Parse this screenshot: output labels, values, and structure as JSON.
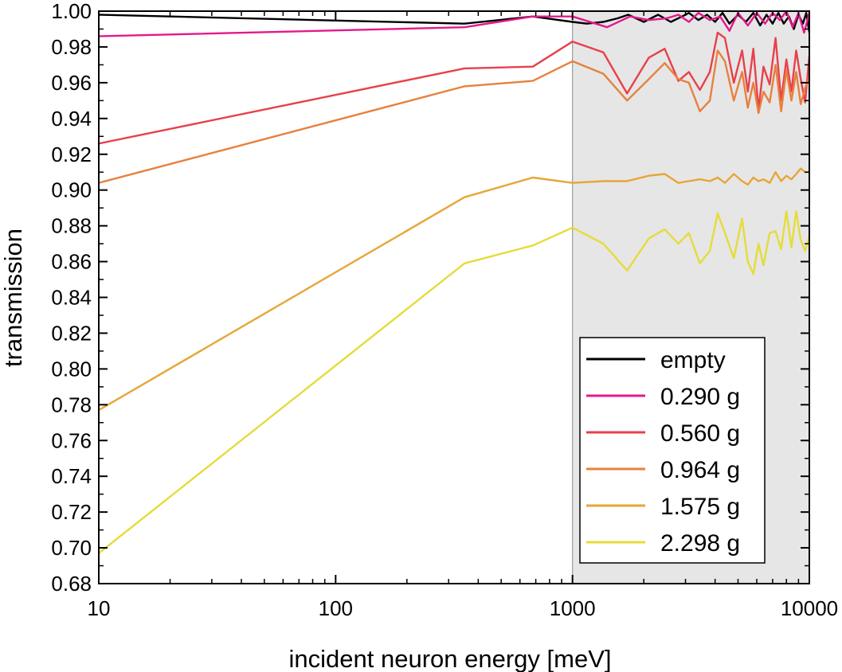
{
  "chart_data": {
    "type": "line",
    "xlabel": "incident neuron energy [meV]",
    "ylabel": "transmission",
    "xscale": "log",
    "xlim": [
      10,
      10000
    ],
    "ylim": [
      0.68,
      1.0
    ],
    "x_ticks": [
      10,
      100,
      1000,
      10000
    ],
    "x_tick_labels": [
      "10",
      "100",
      "1000",
      "10000"
    ],
    "y_ticks": [
      0.68,
      0.7,
      0.72,
      0.74,
      0.76,
      0.78,
      0.8,
      0.82,
      0.84,
      0.86,
      0.88,
      0.9,
      0.92,
      0.94,
      0.96,
      0.98,
      1.0
    ],
    "y_tick_labels": [
      "0.68",
      "0.70",
      "0.72",
      "0.74",
      "0.76",
      "0.78",
      "0.80",
      "0.82",
      "0.84",
      "0.86",
      "0.88",
      "0.90",
      "0.92",
      "0.94",
      "0.96",
      "0.98",
      "1.00"
    ],
    "shaded_region": {
      "x": [
        1000,
        10000
      ],
      "color": "#e6e6e6"
    },
    "grid": false,
    "legend_position": "bottom-right",
    "series": [
      {
        "name": "empty",
        "color": "#000000",
        "x": [
          10,
          350,
          680,
          1000,
          1150,
          1350,
          1550,
          1720,
          2000,
          2300,
          2600,
          2900,
          3100,
          3400,
          3700,
          4000,
          4300,
          4600,
          5000,
          5400,
          5800,
          6200,
          6600,
          7000,
          7400,
          7800,
          8200,
          8600,
          9000,
          9400,
          9700,
          10000
        ],
        "y": [
          0.998,
          0.993,
          0.997,
          0.994,
          0.993,
          0.994,
          0.996,
          0.998,
          0.994,
          0.998,
          0.994,
          0.997,
          0.999,
          0.995,
          0.998,
          0.994,
          0.999,
          0.993,
          0.998,
          0.994,
          0.999,
          0.992,
          0.998,
          0.993,
          0.999,
          0.993,
          0.997,
          0.99,
          0.998,
          0.993,
          0.999,
          0.988
        ]
      },
      {
        "name": "0.290 g",
        "color": "#e5188b",
        "x": [
          10,
          350,
          680,
          1000,
          1400,
          1750,
          2100,
          2500,
          2800,
          3100,
          3400,
          3800,
          4200,
          4600,
          5000,
          5500,
          6000,
          6500,
          7000,
          7500,
          8000,
          8500,
          9000,
          9500,
          10000
        ],
        "y": [
          0.986,
          0.991,
          0.997,
          0.997,
          0.991,
          0.997,
          0.995,
          0.996,
          0.998,
          0.994,
          0.999,
          0.995,
          0.997,
          0.989,
          0.999,
          0.992,
          0.999,
          0.993,
          0.999,
          0.995,
          1.0,
          0.991,
          0.999,
          0.988,
          0.999
        ]
      },
      {
        "name": "0.560 g",
        "color": "#e8404b",
        "x": [
          10,
          350,
          680,
          1000,
          1350,
          1700,
          2100,
          2450,
          2800,
          3100,
          3450,
          3800,
          4100,
          4400,
          4800,
          5200,
          5500,
          5800,
          6100,
          6400,
          6800,
          7200,
          7600,
          8000,
          8400,
          8800,
          9200,
          9600,
          10000
        ],
        "y": [
          0.926,
          0.968,
          0.969,
          0.983,
          0.977,
          0.954,
          0.974,
          0.979,
          0.961,
          0.966,
          0.956,
          0.966,
          0.988,
          0.985,
          0.96,
          0.978,
          0.955,
          0.979,
          0.945,
          0.969,
          0.959,
          0.985,
          0.95,
          0.973,
          0.955,
          0.978,
          0.962,
          0.949,
          0.975
        ]
      },
      {
        "name": "0.964 g",
        "color": "#e8803e",
        "x": [
          10,
          350,
          680,
          1000,
          1350,
          1700,
          2100,
          2450,
          2800,
          3100,
          3450,
          3800,
          4100,
          4400,
          4800,
          5200,
          5500,
          5800,
          6100,
          6400,
          6800,
          7200,
          7600,
          8000,
          8400,
          8800,
          9200,
          9600,
          10000
        ],
        "y": [
          0.904,
          0.958,
          0.961,
          0.972,
          0.965,
          0.95,
          0.962,
          0.971,
          0.962,
          0.96,
          0.944,
          0.95,
          0.978,
          0.972,
          0.95,
          0.966,
          0.946,
          0.96,
          0.943,
          0.955,
          0.949,
          0.97,
          0.944,
          0.967,
          0.95,
          0.966,
          0.948,
          0.957,
          0.963
        ]
      },
      {
        "name": "1.575 g",
        "color": "#e6a636",
        "x": [
          10,
          350,
          680,
          1000,
          1350,
          1700,
          2100,
          2450,
          2800,
          3100,
          3450,
          3800,
          4100,
          4400,
          4800,
          5200,
          5500,
          5800,
          6100,
          6400,
          6800,
          7200,
          7600,
          8000,
          8400,
          8800,
          9200,
          9600,
          10000
        ],
        "y": [
          0.777,
          0.896,
          0.907,
          0.904,
          0.905,
          0.905,
          0.908,
          0.909,
          0.904,
          0.905,
          0.906,
          0.905,
          0.907,
          0.904,
          0.909,
          0.905,
          0.903,
          0.907,
          0.905,
          0.906,
          0.904,
          0.91,
          0.905,
          0.908,
          0.906,
          0.909,
          0.912,
          0.91,
          0.91
        ]
      },
      {
        "name": "2.298 g",
        "color": "#e5dc3a",
        "x": [
          10,
          350,
          680,
          1000,
          1350,
          1700,
          2100,
          2450,
          2800,
          3100,
          3450,
          3800,
          4100,
          4400,
          4800,
          5200,
          5500,
          5800,
          6100,
          6400,
          6800,
          7200,
          7600,
          8000,
          8400,
          8800,
          9200,
          9600,
          10000
        ],
        "y": [
          0.697,
          0.859,
          0.869,
          0.879,
          0.87,
          0.855,
          0.873,
          0.878,
          0.87,
          0.876,
          0.859,
          0.866,
          0.887,
          0.876,
          0.862,
          0.884,
          0.86,
          0.853,
          0.87,
          0.858,
          0.876,
          0.877,
          0.867,
          0.888,
          0.868,
          0.888,
          0.872,
          0.866,
          0.874
        ]
      }
    ]
  }
}
